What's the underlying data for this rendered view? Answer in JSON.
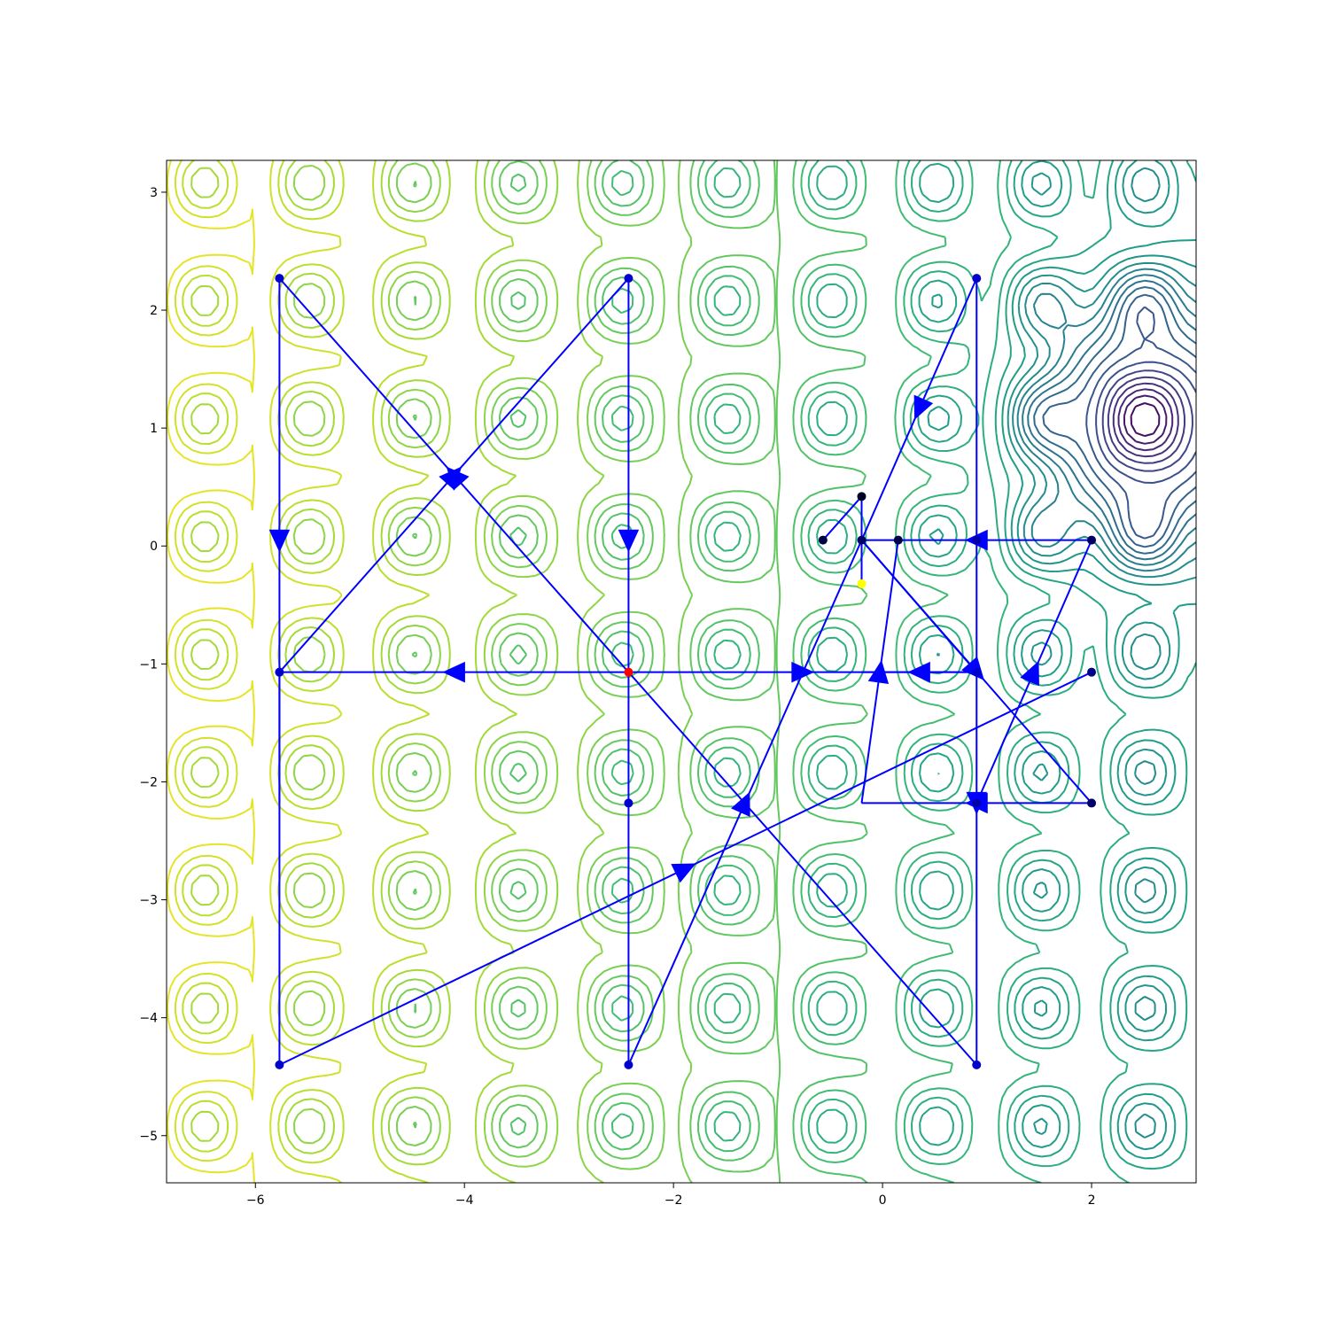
{
  "chart_data": {
    "type": "contour",
    "title": "",
    "xlabel": "",
    "ylabel": "",
    "xlim": [
      -6.85,
      3.0
    ],
    "ylim": [
      -5.4,
      3.27
    ],
    "grid": false,
    "x_ticks": [
      -6,
      -4,
      -2,
      0,
      2
    ],
    "y_ticks": [
      -5,
      -4,
      -3,
      -2,
      -1,
      0,
      1,
      2,
      3
    ],
    "x_tick_labels": [
      "−6",
      "−4",
      "−2",
      "0",
      "2"
    ],
    "y_tick_labels": [
      "−5",
      "−4",
      "−3",
      "−2",
      "−1",
      "0",
      "1",
      "2",
      "3"
    ],
    "colormap": "viridis",
    "contour_levels": 28,
    "surface_minimum": {
      "x": 2.5,
      "y": 1.05
    },
    "lattice_spacing": 1.0,
    "path_points": [
      {
        "x": -2.43,
        "y": -1.07,
        "color": "#ff0000"
      },
      {
        "x": -5.77,
        "y": -1.07,
        "color": "#0000cc"
      },
      {
        "x": -2.43,
        "y": 2.27,
        "color": "#0000cc"
      },
      {
        "x": -2.43,
        "y": -2.18,
        "color": "#0000cc"
      },
      {
        "x": -5.77,
        "y": 2.27,
        "color": "#0000cc"
      },
      {
        "x": -5.77,
        "y": -4.4,
        "color": "#0000cc"
      },
      {
        "x": -2.43,
        "y": -4.4,
        "color": "#0000cc"
      },
      {
        "x": 0.9,
        "y": -1.07,
        "color": "#0000cc"
      },
      {
        "x": 0.9,
        "y": 2.27,
        "color": "#0000cc"
      },
      {
        "x": 0.9,
        "y": -4.4,
        "color": "#0000cc"
      },
      {
        "x": 0.9,
        "y": 0.05,
        "color": "#0000aa"
      },
      {
        "x": 0.9,
        "y": -2.18,
        "color": "#0000aa"
      },
      {
        "x": 2.0,
        "y": -1.07,
        "color": "#000088"
      },
      {
        "x": 2.0,
        "y": 0.05,
        "color": "#000066"
      },
      {
        "x": 2.0,
        "y": -2.18,
        "color": "#000066"
      },
      {
        "x": -0.2,
        "y": 0.05,
        "color": "#000066"
      },
      {
        "x": -0.57,
        "y": 0.05,
        "color": "#000044"
      },
      {
        "x": 0.15,
        "y": 0.05,
        "color": "#000044"
      },
      {
        "x": -0.2,
        "y": 0.42,
        "color": "#000022"
      },
      {
        "x": -0.2,
        "y": -0.32,
        "color": "#ffff00"
      }
    ],
    "path_segments": [
      {
        "from": [
          -2.43,
          -1.07
        ],
        "to": [
          -5.77,
          -1.07
        ],
        "arrow": true
      },
      {
        "from": [
          -5.77,
          -1.07
        ],
        "to": [
          -2.43,
          2.27
        ],
        "arrow": true
      },
      {
        "from": [
          -2.43,
          2.27
        ],
        "to": [
          -2.43,
          -2.18
        ],
        "arrow": true
      },
      {
        "from": [
          -2.43,
          -1.07
        ],
        "to": [
          -5.77,
          2.27
        ],
        "arrow": true
      },
      {
        "from": [
          -5.77,
          2.27
        ],
        "to": [
          -5.77,
          -2.18
        ],
        "arrow": true
      },
      {
        "from": [
          -5.77,
          -1.07
        ],
        "to": [
          -5.77,
          -4.4
        ],
        "arrow": false
      },
      {
        "from": [
          -5.77,
          -4.4
        ],
        "to": [
          2.0,
          -1.07
        ],
        "arrow": true
      },
      {
        "from": [
          -2.43,
          -2.18
        ],
        "to": [
          -2.43,
          -4.4
        ],
        "arrow": false
      },
      {
        "from": [
          -2.43,
          -4.4
        ],
        "to": [
          -0.2,
          0.05
        ],
        "arrow": true
      },
      {
        "from": [
          -2.43,
          -1.07
        ],
        "to": [
          0.9,
          -1.07
        ],
        "arrow": true
      },
      {
        "from": [
          -2.43,
          -1.07
        ],
        "to": [
          0.9,
          -4.4
        ],
        "arrow": false
      },
      {
        "from": [
          0.9,
          -1.07
        ],
        "to": [
          -0.2,
          -1.07
        ],
        "arrow": true
      },
      {
        "from": [
          0.9,
          -4.4
        ],
        "to": [
          0.9,
          2.27
        ],
        "arrow": false
      },
      {
        "from": [
          0.9,
          2.27
        ],
        "to": [
          -0.2,
          0.05
        ],
        "arrow": true
      },
      {
        "from": [
          0.9,
          -2.18
        ],
        "to": [
          0.9,
          -2.18
        ],
        "arrow": true
      },
      {
        "from": [
          0.9,
          -1.07
        ],
        "to": [
          -0.2,
          0.05
        ],
        "arrow": false
      },
      {
        "from": [
          -0.2,
          0.05
        ],
        "to": [
          2.0,
          -2.18
        ],
        "arrow": true
      },
      {
        "from": [
          2.0,
          -2.18
        ],
        "to": [
          -0.2,
          -2.18
        ],
        "arrow": true
      },
      {
        "from": [
          -0.2,
          -2.18
        ],
        "to": [
          0.15,
          0.05
        ],
        "arrow": true
      },
      {
        "from": [
          0.9,
          -2.18
        ],
        "to": [
          2.0,
          0.05
        ],
        "arrow": true
      },
      {
        "from": [
          2.0,
          0.05
        ],
        "to": [
          -0.2,
          0.05
        ],
        "arrow": true
      },
      {
        "from": [
          -0.57,
          0.05
        ],
        "to": [
          -0.2,
          0.42
        ],
        "arrow": false
      },
      {
        "from": [
          -0.2,
          0.42
        ],
        "to": [
          -0.2,
          -0.32
        ],
        "arrow": false
      }
    ]
  }
}
